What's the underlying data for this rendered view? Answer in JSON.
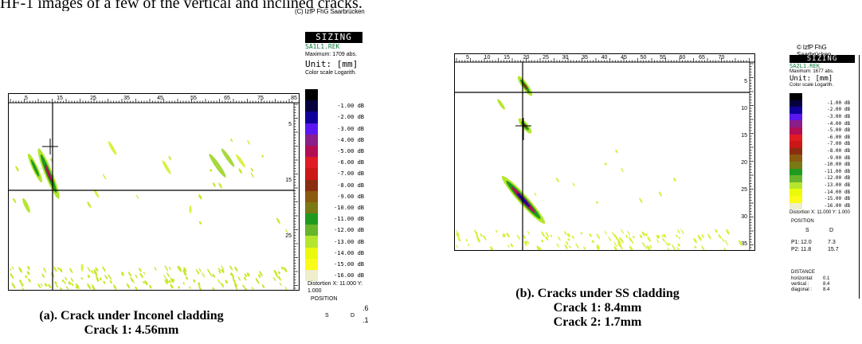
{
  "header": {
    "text": "HF-1 images of a few of the vertical and inclined cracks."
  },
  "legend_colors": [
    "#000000",
    "#07003f",
    "#10009a",
    "#5a17f0",
    "#8a1e8a",
    "#b30d55",
    "#e01b24",
    "#cc1717",
    "#8a2d10",
    "#8a5a10",
    "#7a7a14",
    "#1f9a1f",
    "#66b52a",
    "#b5e62e",
    "#ebfa0a",
    "#fbfb1a",
    "#eeeecc"
  ],
  "figure_a": {
    "copyright": "(C) IzfP FhG Saarbrücken",
    "sizing": "SIZING",
    "file": "SA1L1.REK",
    "maximum": "Maximum: 1709 abs.",
    "unit": "Unit: [mm]",
    "color_scale_title": "Color scale Logarith.",
    "scale_labels": [
      "-1.00 dB",
      "-2.00 dB",
      "-3.00 dB",
      "-4.00 dB",
      "-5.00 dB",
      "-6.00 dB",
      "-7.00 dB",
      "-8.00 dB",
      "-9.00 dB",
      "-10.00 dB",
      "-11.00 dB",
      "-12.00 dB",
      "-13.00 dB",
      "-14.00 dB",
      "-15.00 dB",
      "-16.00 dB"
    ],
    "ruler_top": [
      "5",
      "15",
      "25",
      "35",
      "45",
      "55",
      "65",
      "75",
      "85"
    ],
    "ruler_right": [
      "5",
      "15",
      "25"
    ],
    "distortion": "Distortion X: 11.000 Y: 1.000",
    "position_title": "POSITION",
    "position_cols": [
      "S",
      "D"
    ],
    "edge_values": [
      ".6",
      ".1"
    ],
    "caption_line1": "(a). Crack under Inconel cladding",
    "caption_line2": "Crack 1: 4.56mm"
  },
  "figure_b": {
    "copyright": "© IzfP FhG Saarbrücken",
    "sizing": "SIZING",
    "file": "SA2L1.REK",
    "maximum": "Maximum: 1677 abs.",
    "unit": "Unit: [mm]",
    "color_scale_title": "Color scale Logarith.",
    "scale_labels": [
      "-1.00 dB",
      "-2.00 dB",
      "-3.00 dB",
      "-4.00 dB",
      "-5.00 dB",
      "-6.00 dB",
      "-7.00 dB",
      "-8.00 dB",
      "-9.00 dB",
      "-10.00 dB",
      "-11.00 dB",
      "-12.00 dB",
      "-13.00 dB",
      "-14.00 dB",
      "-15.00 dB",
      "-16.00 dB"
    ],
    "ruler_top": [
      "5",
      "10",
      "15",
      "20",
      "25",
      "30",
      "35",
      "40",
      "45",
      "50",
      "55",
      "60",
      "65",
      "70"
    ],
    "ruler_right": [
      "5",
      "10",
      "15",
      "20",
      "25",
      "30",
      "35"
    ],
    "distortion": "Distortion X: 11.000 Y: 1.000",
    "position_title": "POSITION",
    "position_cols": [
      "S",
      "D"
    ],
    "p1": {
      "label": "P1:",
      "s": "12.0",
      "d": "7.3"
    },
    "p2": {
      "label": "P2:",
      "s": "11.8",
      "d": "15.7"
    },
    "distance_title": "DISTANCE",
    "distances": [
      {
        "label": "horizontal:",
        "value": "0.1"
      },
      {
        "label": "vertical :",
        "value": "8.4"
      },
      {
        "label": "diagonal :",
        "value": "8.4"
      }
    ],
    "caption_line1": "(b). Cracks under SS cladding",
    "caption_line2": "Crack 1: 8.4mm",
    "caption_line3": "Crack 2: 1.7mm"
  }
}
